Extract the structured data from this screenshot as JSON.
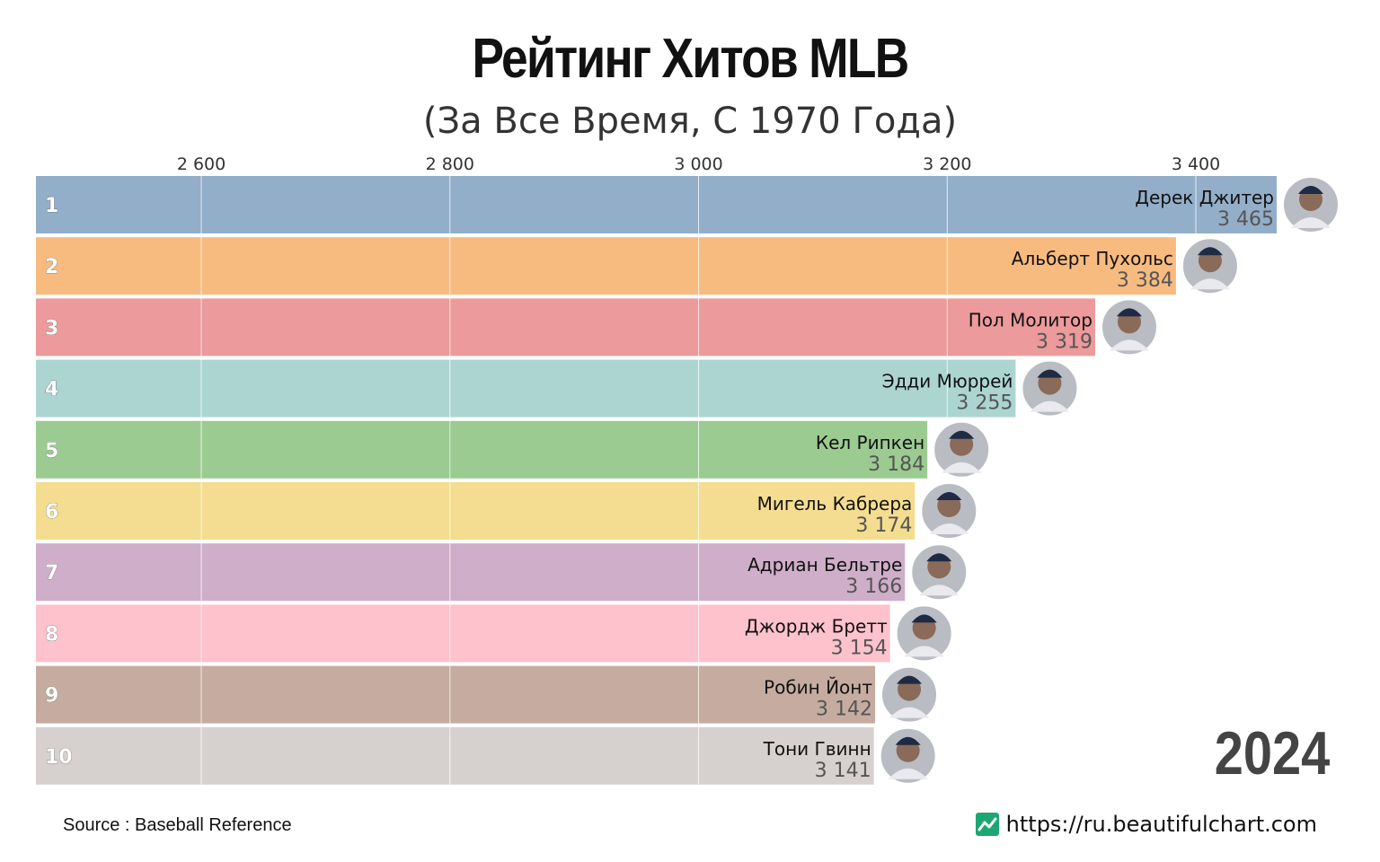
{
  "title": "Рейтинг Хитов MLB",
  "subtitle": "(За Все Время, С 1970 Года)",
  "year": "2024",
  "source": "Source : Baseball Reference",
  "brand_url": "https://ru.beautifulchart.com",
  "chart_data": {
    "type": "bar",
    "orientation": "horizontal",
    "title": "Рейтинг Хитов MLB",
    "subtitle": "(За Все Время, С 1970 Года)",
    "xlim": [
      2467,
      3465
    ],
    "x_ticks": [
      2600,
      2800,
      3000,
      3200,
      3400
    ],
    "x_tick_labels": [
      "2 600",
      "2 800",
      "3 000",
      "3 200",
      "3 400"
    ],
    "grid": true,
    "categories": [
      "Дерек Джитер",
      "Альберт Пухольс",
      "Пол Молитор",
      "Эдди Мюррей",
      "Кел Рипкен",
      "Мигель Кабрера",
      "Адриан Бельтре",
      "Джордж Бретт",
      "Робин Йонт",
      "Тони Гвинн"
    ],
    "ranks": [
      "1",
      "2",
      "3",
      "4",
      "5",
      "6",
      "7",
      "8",
      "9",
      "10"
    ],
    "values": [
      3465,
      3384,
      3319,
      3255,
      3184,
      3174,
      3166,
      3154,
      3142,
      3141
    ],
    "value_labels": [
      "3  465",
      "3  384",
      "3  319",
      "3  255",
      "3  184",
      "3  174",
      "3  166",
      "3  154",
      "3  142",
      "3  141"
    ],
    "colors": [
      "#93aec9",
      "#f7bb80",
      "#ec9a9b",
      "#acd5d2",
      "#9bcb91",
      "#f4dd90",
      "#cfaec9",
      "#fdc2cb",
      "#c6aca0",
      "#d6d1cf"
    ],
    "avatar_icons": [
      "player-photo-icon",
      "player-photo-icon",
      "player-photo-icon",
      "player-photo-icon",
      "player-photo-icon",
      "player-photo-icon",
      "player-photo-icon",
      "player-photo-icon",
      "player-photo-icon",
      "player-photo-icon"
    ]
  }
}
